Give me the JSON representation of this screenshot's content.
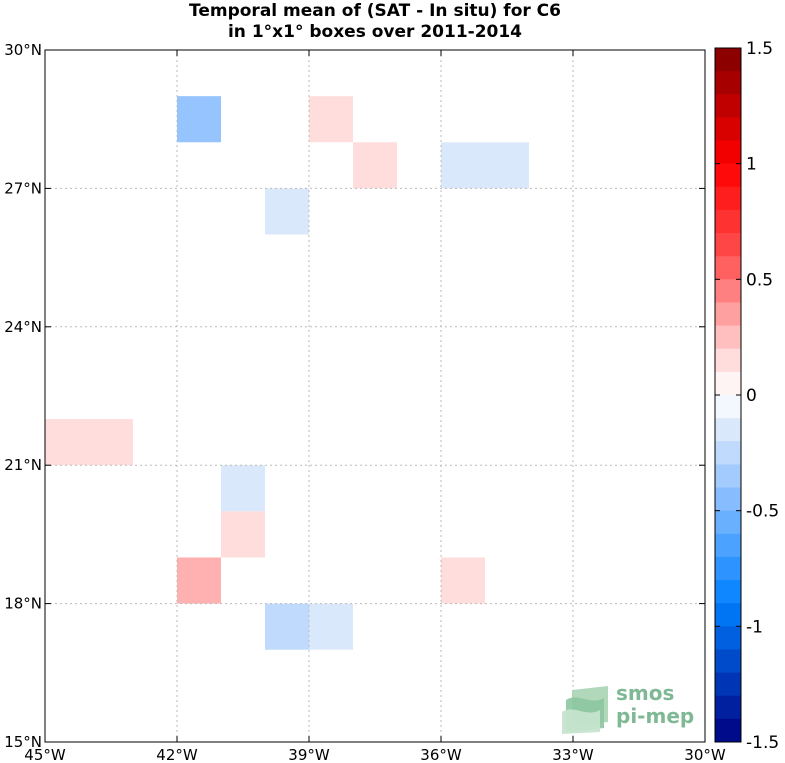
{
  "chart_data": {
    "type": "heatmap",
    "title": "Temporal mean of (SAT - In situ) for C6",
    "subtitle": "in 1°x1° boxes over 2011-2014",
    "x_range": [
      -45,
      -30
    ],
    "y_range": [
      15,
      30
    ],
    "grid": true,
    "x_ticks": [
      {
        "value": -45,
        "label": "45°W"
      },
      {
        "value": -42,
        "label": "42°W"
      },
      {
        "value": -39,
        "label": "39°W"
      },
      {
        "value": -36,
        "label": "36°W"
      },
      {
        "value": -33,
        "label": "33°W"
      },
      {
        "value": -30,
        "label": "30°W"
      }
    ],
    "y_ticks": [
      {
        "value": 30,
        "label": "30°N"
      },
      {
        "value": 27,
        "label": "27°N"
      },
      {
        "value": 24,
        "label": "24°N"
      },
      {
        "value": 21,
        "label": "21°N"
      },
      {
        "value": 18,
        "label": "18°N"
      },
      {
        "value": 15,
        "label": "15°N"
      }
    ],
    "cells": [
      {
        "lon": -42,
        "lat": 28,
        "value": -0.4
      },
      {
        "lon": -39,
        "lat": 28,
        "value": 0.15
      },
      {
        "lon": -38,
        "lat": 27,
        "value": 0.15
      },
      {
        "lon": -36,
        "lat": 27,
        "value": -0.15
      },
      {
        "lon": -35,
        "lat": 27,
        "value": -0.15
      },
      {
        "lon": -40,
        "lat": 26,
        "value": -0.15
      },
      {
        "lon": -45,
        "lat": 21,
        "value": 0.15
      },
      {
        "lon": -44,
        "lat": 21,
        "value": 0.15
      },
      {
        "lon": -41,
        "lat": 20,
        "value": -0.15
      },
      {
        "lon": -41,
        "lat": 19,
        "value": 0.15
      },
      {
        "lon": -42,
        "lat": 18,
        "value": 0.3
      },
      {
        "lon": -36,
        "lat": 18,
        "value": 0.15
      },
      {
        "lon": -40,
        "lat": 17,
        "value": -0.25
      },
      {
        "lon": -39,
        "lat": 17,
        "value": -0.15
      }
    ],
    "colorbar": {
      "min": -1.5,
      "max": 1.5,
      "step": 0.1,
      "ticks": [
        {
          "value": 1.5,
          "label": "1.5"
        },
        {
          "value": 1.0,
          "label": "1"
        },
        {
          "value": 0.5,
          "label": "0.5"
        },
        {
          "value": 0.0,
          "label": "0"
        },
        {
          "value": -0.5,
          "label": "-0.5"
        },
        {
          "value": -1.0,
          "label": "-1"
        },
        {
          "value": -1.5,
          "label": "-1.5"
        }
      ]
    }
  },
  "logo": {
    "line1": "smos",
    "line2": "pi-mep"
  },
  "colors": {
    "positive_dark": "#800000",
    "negative_dark": "#000080",
    "grid": "#bbbbbb"
  }
}
